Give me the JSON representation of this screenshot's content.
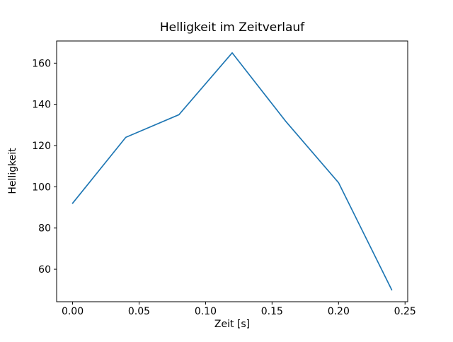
{
  "chart_data": {
    "type": "line",
    "title": "Helligkeit im Zeitverlauf",
    "xlabel": "Zeit [s]",
    "ylabel": "Helligkeit",
    "x": [
      0.0,
      0.04,
      0.08,
      0.12,
      0.16,
      0.2,
      0.24
    ],
    "y": [
      92,
      124,
      135,
      165,
      132,
      102,
      50
    ],
    "xlim": [
      -0.012,
      0.252
    ],
    "ylim": [
      44.25,
      170.75
    ],
    "xticks": {
      "values": [
        0.0,
        0.05,
        0.1,
        0.15,
        0.2,
        0.25
      ],
      "labels": [
        "0.00",
        "0.05",
        "0.10",
        "0.15",
        "0.20",
        "0.25"
      ]
    },
    "yticks": {
      "values": [
        60,
        80,
        100,
        120,
        140,
        160
      ],
      "labels": [
        "60",
        "80",
        "100",
        "120",
        "140",
        "160"
      ]
    },
    "line_color": "#1f77b4",
    "background": "#ffffff",
    "grid": false,
    "legend_position": "none"
  }
}
